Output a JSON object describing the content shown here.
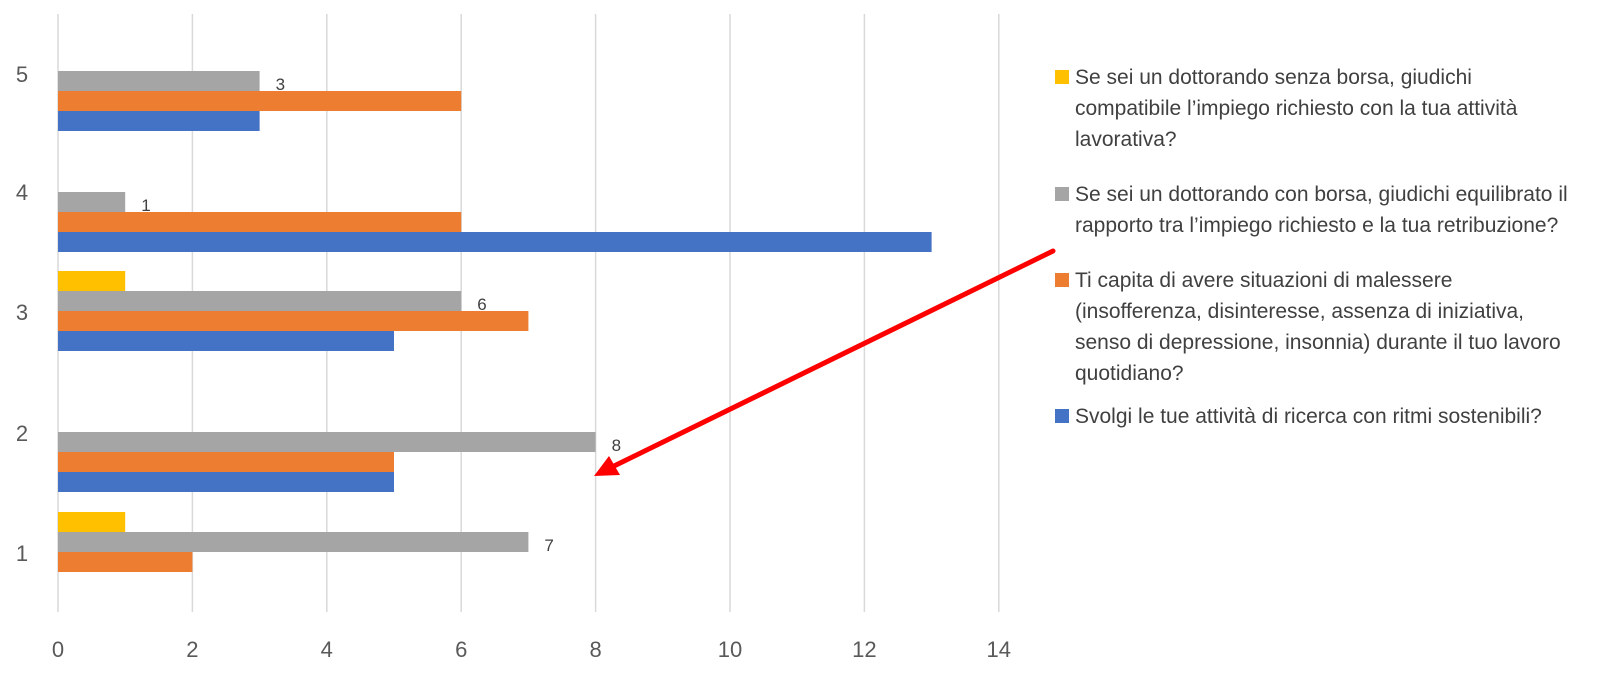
{
  "chart_data": {
    "type": "bar",
    "orientation": "horizontal",
    "categories": [
      "1",
      "2",
      "3",
      "4",
      "5"
    ],
    "xlim": [
      0,
      14
    ],
    "x_ticks": [
      0,
      2,
      4,
      6,
      8,
      10,
      12,
      14
    ],
    "grid": "vertical",
    "legend_position": "right",
    "series": [
      {
        "name": "Svolgi le tue attività di ricerca con ritmi sostenibili?",
        "color": "#4472C4",
        "values": [
          0,
          5,
          5,
          13,
          3
        ]
      },
      {
        "name": "Ti capita di avere situazioni di malessere (insofferenza, disinteresse, assenza di iniziativa, senso di depressione, insonnia) durante il tuo lavoro quotidiano?",
        "color": "#ED7D31",
        "values": [
          2,
          5,
          7,
          6,
          6
        ]
      },
      {
        "name": "Se sei un dottorando con borsa, giudichi equilibrato il rapporto tra l’impiego richiesto e la tua retribuzione?",
        "color": "#A5A5A5",
        "values": [
          7,
          8,
          6,
          1,
          3
        ],
        "labels": [
          "7",
          "8",
          "6",
          "1",
          "3"
        ]
      },
      {
        "name": "Se sei un dottorando senza borsa, giudichi compatibile l’impiego richiesto con la tua attività lavorativa?",
        "color": "#FFC000",
        "values": [
          1,
          0,
          1,
          0,
          0
        ]
      }
    ],
    "annotation": {
      "type": "arrow",
      "color": "#FF0000"
    }
  }
}
